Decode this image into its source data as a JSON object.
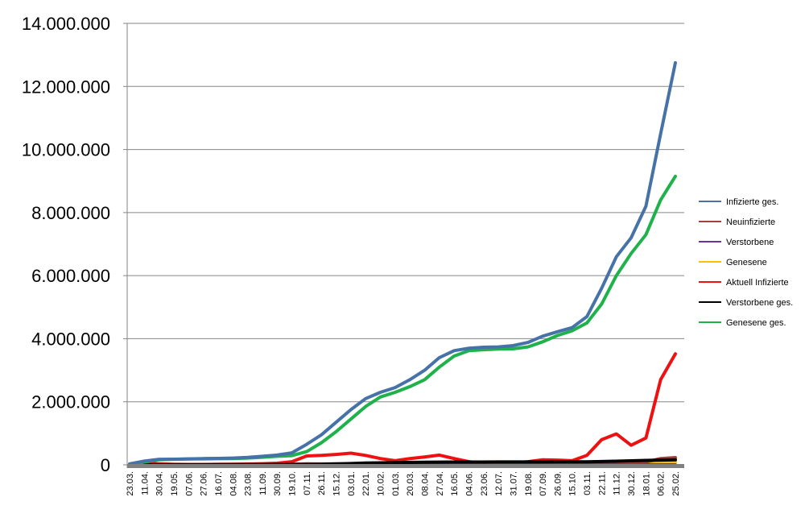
{
  "chart_data": {
    "type": "line",
    "ylim": [
      0,
      14000000
    ],
    "y_ticks": [
      0,
      2000000,
      4000000,
      6000000,
      8000000,
      10000000,
      12000000,
      14000000
    ],
    "y_tick_labels": [
      "0",
      "2.000.000",
      "4.000.000",
      "6.000.000",
      "8.000.000",
      "10.000.000",
      "12.000.000",
      "14.000.000"
    ],
    "grid": true,
    "legend_position": "right",
    "categories": [
      "23.03.",
      "11.04.",
      "30.04.",
      "19.05.",
      "07.06.",
      "27.06.",
      "16.07.",
      "04.08.",
      "23.08.",
      "11.09.",
      "30.09.",
      "19.10.",
      "07.11.",
      "26.11.",
      "15.12.",
      "03.01.",
      "22.01.",
      "10.02.",
      "01.03.",
      "20.03.",
      "08.04.",
      "27.04.",
      "16.05.",
      "04.06.",
      "23.06.",
      "12.07.",
      "31.07.",
      "19.08.",
      "07.09.",
      "26.09.",
      "15.10.",
      "03.11.",
      "22.11.",
      "11.12.",
      "30.12.",
      "18.01.",
      "06.02.",
      "25.02."
    ],
    "series": [
      {
        "name": "Infizierte ges.",
        "color": "#4672a8",
        "values": [
          30000,
          120000,
          175000,
          180000,
          190000,
          200000,
          205000,
          215000,
          235000,
          270000,
          310000,
          380000,
          650000,
          950000,
          1350000,
          1750000,
          2100000,
          2300000,
          2450000,
          2700000,
          3000000,
          3400000,
          3620000,
          3700000,
          3730000,
          3740000,
          3780000,
          3880000,
          4080000,
          4220000,
          4350000,
          4700000,
          5600000,
          6600000,
          7200000,
          8200000,
          10500000,
          12750000
        ]
      },
      {
        "name": "Neuinfizierte",
        "color": "#a0413e",
        "values": [
          5000,
          8000,
          3000,
          1000,
          1000,
          1000,
          2000,
          3000,
          4000,
          6000,
          10000,
          20000,
          30000,
          25000,
          30000,
          28000,
          15000,
          10000,
          12000,
          20000,
          25000,
          20000,
          12000,
          5000,
          3000,
          2000,
          3000,
          5000,
          10000,
          12000,
          15000,
          30000,
          60000,
          80000,
          60000,
          90000,
          200000,
          230000
        ]
      },
      {
        "name": "Verstorbene",
        "color": "#7030a0",
        "values": [
          0,
          100,
          100,
          50,
          50,
          50,
          50,
          50,
          50,
          100,
          100,
          200,
          300,
          400,
          600,
          700,
          500,
          400,
          300,
          300,
          300,
          300,
          200,
          100,
          100,
          50,
          50,
          50,
          100,
          100,
          100,
          200,
          300,
          400,
          400,
          400,
          500,
          600
        ]
      },
      {
        "name": "Genesene",
        "color": "#ffc000",
        "values": [
          1000,
          4000,
          5000,
          3000,
          1000,
          1000,
          1000,
          2000,
          3000,
          4000,
          5000,
          8000,
          15000,
          20000,
          25000,
          25000,
          25000,
          15000,
          10000,
          12000,
          18000,
          20000,
          18000,
          8000,
          4000,
          2000,
          2000,
          3000,
          6000,
          10000,
          10000,
          15000,
          30000,
          50000,
          60000,
          50000,
          60000,
          90000
        ]
      },
      {
        "name": "Aktuell Infizierte",
        "color": "#ee1111",
        "values": [
          20000,
          60000,
          30000,
          15000,
          10000,
          10000,
          15000,
          20000,
          25000,
          35000,
          50000,
          100000,
          280000,
          300000,
          330000,
          370000,
          300000,
          200000,
          130000,
          200000,
          250000,
          310000,
          200000,
          100000,
          60000,
          50000,
          60000,
          100000,
          160000,
          150000,
          130000,
          300000,
          800000,
          980000,
          620000,
          850000,
          2700000,
          3520000
        ]
      },
      {
        "name": "Verstorbene ges.",
        "color": "#000000",
        "values": [
          500,
          2000,
          5000,
          7000,
          8000,
          8500,
          9000,
          9200,
          9400,
          9600,
          9900,
          10500,
          12000,
          17000,
          28000,
          40000,
          55000,
          65000,
          72000,
          76000,
          82000,
          87000,
          89000,
          90000,
          90500,
          91000,
          91500,
          92000,
          93000,
          94000,
          95000,
          98000,
          105000,
          116000,
          128000,
          140000,
          150000,
          158000
        ]
      },
      {
        "name": "Genesene ges.",
        "color": "#1fb24a",
        "values": [
          10000,
          90000,
          160000,
          175000,
          185000,
          190000,
          195000,
          200000,
          215000,
          240000,
          270000,
          290000,
          420000,
          700000,
          1050000,
          1450000,
          1850000,
          2150000,
          2300000,
          2480000,
          2700000,
          3100000,
          3450000,
          3620000,
          3650000,
          3670000,
          3680000,
          3740000,
          3900000,
          4100000,
          4250000,
          4500000,
          5100000,
          6000000,
          6700000,
          7300000,
          8400000,
          9150000
        ]
      }
    ]
  }
}
